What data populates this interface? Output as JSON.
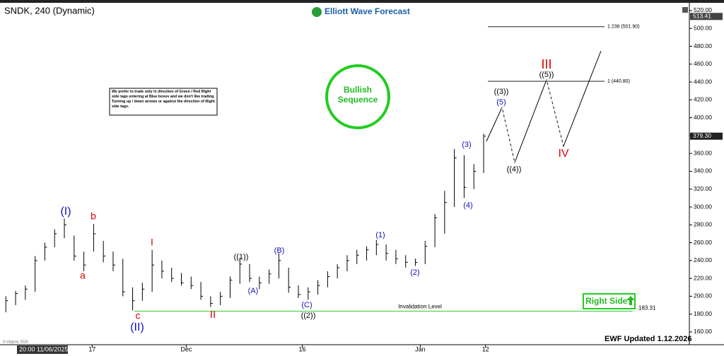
{
  "chart_data": {
    "type": "ohlc",
    "title": "SNDK, 240 (Dynamic)",
    "brand": "Elliott Wave Forecast",
    "note": "We prefer to trade only in direction of Green / Red Right side tags entering at Blue boxes and we don't like trading Turning up / down arrows or against the direction of Right side tags.",
    "badge": "Bullish Sequence",
    "side_tag": "Right Side",
    "updated": "EWF Updated 1.12.2026",
    "copyright": "© eSignal, 2026",
    "start_date": "20:00 11/06/2025",
    "xlim": [
      -0.6,
      70.1
    ],
    "xticks": [
      {
        "value": 8.85,
        "label": "17"
      },
      {
        "value": 18.5,
        "label": "Dec"
      },
      {
        "value": 30.4,
        "label": "16"
      },
      {
        "value": 42.5,
        "label": "Jan"
      },
      {
        "value": 49.2,
        "label": "12"
      }
    ],
    "ylim": [
      156.8,
      525.5
    ],
    "yticks": [
      {
        "value": 160,
        "label": "160.00"
      },
      {
        "value": 180,
        "label": "180.00"
      },
      {
        "value": 200,
        "label": "200.00"
      },
      {
        "value": 220,
        "label": "220.00"
      },
      {
        "value": 240,
        "label": "240.00"
      },
      {
        "value": 260,
        "label": "260.00"
      },
      {
        "value": 280,
        "label": "280.00"
      },
      {
        "value": 300,
        "label": "300.00"
      },
      {
        "value": 320,
        "label": "320.00"
      },
      {
        "value": 340,
        "label": "340.00"
      },
      {
        "value": 360,
        "label": "360.00"
      },
      {
        "value": 380,
        "label": "380.00"
      },
      {
        "value": 400,
        "label": "400.00"
      },
      {
        "value": 420,
        "label": "420.00"
      },
      {
        "value": 440,
        "label": "440.00"
      },
      {
        "value": 460,
        "label": "460.00"
      },
      {
        "value": 480,
        "label": "480.00"
      },
      {
        "value": 500,
        "label": "500.00"
      },
      {
        "value": 520,
        "label": "520.00"
      }
    ],
    "high": [
      200,
      206,
      212,
      245,
      260,
      275,
      287,
      268,
      250,
      281,
      262,
      250,
      242,
      210,
      215,
      252,
      240,
      232,
      226,
      222,
      216,
      200,
      205,
      222,
      243,
      236,
      222,
      230,
      248,
      232,
      212,
      210,
      218,
      228,
      236,
      246,
      252,
      256,
      263,
      258,
      252,
      246,
      242,
      262,
      292,
      318,
      365,
      358,
      348,
      382
    ],
    "low": [
      182,
      190,
      196,
      205,
      240,
      255,
      265,
      240,
      228,
      250,
      238,
      228,
      200,
      184,
      195,
      205,
      220,
      216,
      212,
      208,
      196,
      188,
      190,
      198,
      214,
      216,
      208,
      214,
      220,
      204,
      198,
      196,
      202,
      210,
      220,
      228,
      236,
      240,
      246,
      240,
      236,
      232,
      234,
      236,
      255,
      270,
      300,
      310,
      320,
      338
    ],
    "close": [
      195,
      203,
      208,
      240,
      255,
      270,
      280,
      245,
      235,
      270,
      245,
      235,
      205,
      195,
      208,
      235,
      228,
      220,
      215,
      212,
      200,
      192,
      200,
      218,
      236,
      220,
      215,
      225,
      240,
      210,
      202,
      205,
      212,
      222,
      232,
      240,
      246,
      252,
      258,
      248,
      242,
      238,
      238,
      256,
      288,
      305,
      355,
      322,
      340,
      379.3
    ],
    "color": "#000000",
    "last_price": {
      "value": 379.3,
      "label": "379.30"
    },
    "top_price": {
      "value": 513.41,
      "label": "513.41"
    },
    "levels": [
      {
        "value": 501.9,
        "label": "1.236 (501.90)"
      },
      {
        "value": 440.8,
        "label": "1 (440.80)"
      }
    ],
    "invalidation": {
      "value": 183.31,
      "name": "Invalidation Level",
      "color": "#33cc33"
    },
    "waves": [
      {
        "text": "(I)",
        "color": "#1010c0"
      },
      {
        "text": "b",
        "color": "#dd0000"
      },
      {
        "text": "a",
        "color": "#dd0000"
      },
      {
        "text": "c",
        "color": "#dd0000"
      },
      {
        "text": "(II)",
        "color": "#1010c0"
      },
      {
        "text": "I",
        "color": "#dd0000"
      },
      {
        "text": "II",
        "color": "#dd0000"
      },
      {
        "text": "((1))",
        "color": "#000000"
      },
      {
        "text": "(A)",
        "color": "#1010c0"
      },
      {
        "text": "(B)",
        "color": "#1010c0"
      },
      {
        "text": "(C)",
        "color": "#1010c0"
      },
      {
        "text": "((2))",
        "color": "#000000"
      },
      {
        "text": "(1)",
        "color": "#1010c0"
      },
      {
        "text": "(2)",
        "color": "#1010c0"
      },
      {
        "text": "(3)",
        "color": "#1010c0"
      },
      {
        "text": "(4)",
        "color": "#1010c0"
      },
      {
        "text": "(5)",
        "color": "#1010c0"
      },
      {
        "text": "((3))",
        "color": "#000000"
      },
      {
        "text": "((4))",
        "color": "#000000"
      },
      {
        "text": "((5))",
        "color": "#000000"
      },
      {
        "text": "III",
        "color": "#dd0000"
      },
      {
        "text": "IV",
        "color": "#dd0000"
      }
    ]
  }
}
